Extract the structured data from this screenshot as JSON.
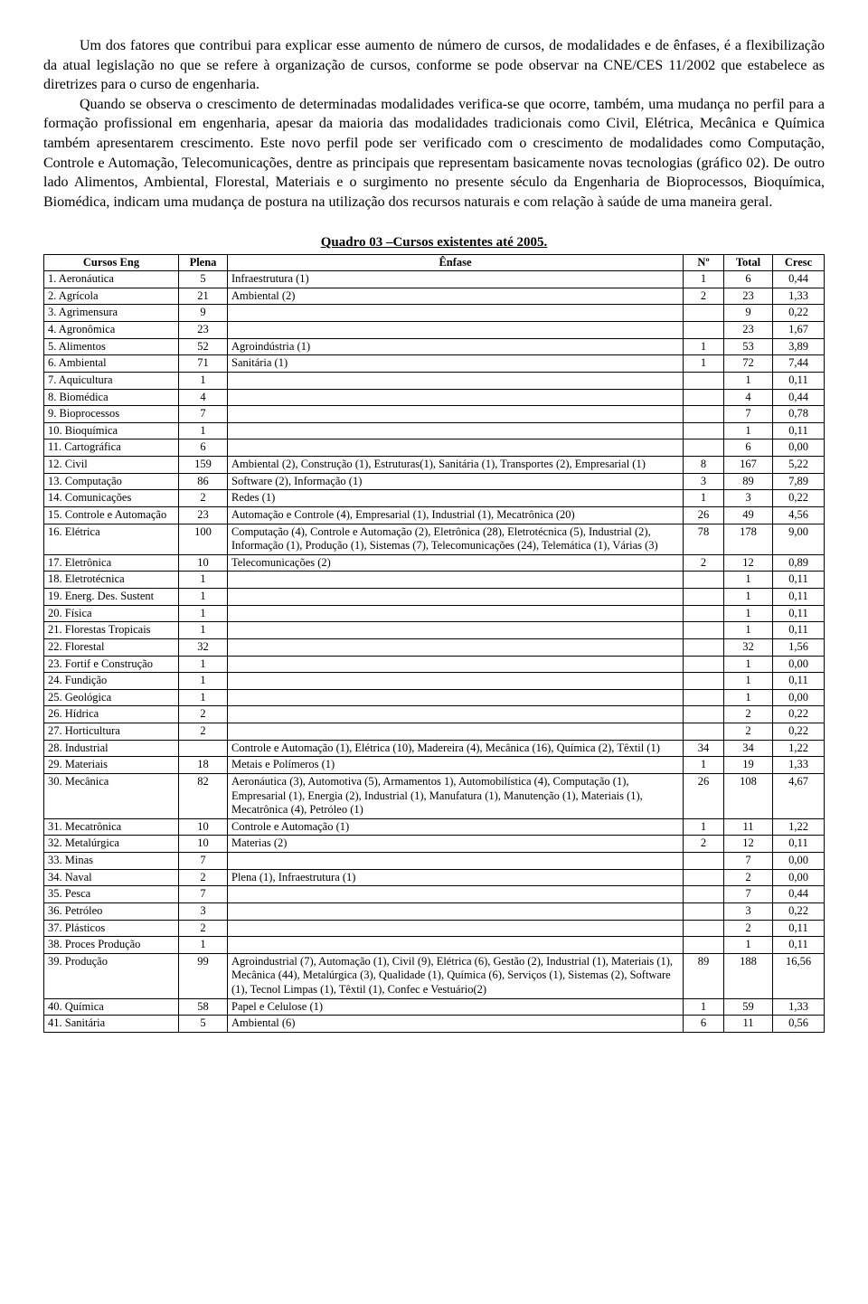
{
  "paragraphs": [
    "Um dos fatores que contribui para explicar esse aumento de número de cursos, de modalidades e de ênfases, é a flexibilização da atual legislação no que se refere à organização de cursos, conforme se pode observar na CNE/CES 11/2002 que estabelece as diretrizes para o curso de engenharia.",
    "Quando se observa o crescimento de determinadas modalidades verifica-se que ocorre, também, uma mudança no perfil para a formação profissional em engenharia, apesar da maioria das modalidades tradicionais como Civil, Elétrica, Mecânica e Química também apresentarem crescimento. Este novo perfil pode ser verificado com o crescimento de modalidades como Computação, Controle e Automação, Telecomunicações, dentre as principais que representam basicamente novas tecnologias (gráfico 02). De outro lado Alimentos, Ambiental, Florestal, Materiais e o surgimento no presente século da Engenharia de Bioprocessos, Bioquímica, Biomédica, indicam uma mudança de postura na utilização dos recursos naturais e com relação à saúde de uma maneira geral."
  ],
  "table_title": "Quadro 03 –Cursos existentes até 2005.",
  "columns": [
    "Cursos Eng",
    "Plena",
    "Ênfase",
    "Nº",
    "Total",
    "Cresc"
  ],
  "rows": [
    {
      "n": "1.",
      "name": "Aeronáutica",
      "plena": "5",
      "enfase": "Infraestrutura (1)",
      "no": "1",
      "total": "6",
      "cresc": "0,44"
    },
    {
      "n": "2.",
      "name": "Agrícola",
      "plena": "21",
      "enfase": "Ambiental (2)",
      "no": "2",
      "total": "23",
      "cresc": "1,33"
    },
    {
      "n": "3.",
      "name": "Agrimensura",
      "plena": "9",
      "enfase": "",
      "no": "",
      "total": "9",
      "cresc": "0,22"
    },
    {
      "n": "4.",
      "name": "Agronômica",
      "plena": "23",
      "enfase": "",
      "no": "",
      "total": "23",
      "cresc": "1,67"
    },
    {
      "n": "5.",
      "name": "Alimentos",
      "plena": "52",
      "enfase": "Agroindústria (1)",
      "no": "1",
      "total": "53",
      "cresc": "3,89"
    },
    {
      "n": "6.",
      "name": "Ambiental",
      "plena": "71",
      "enfase": "Sanitária (1)",
      "no": "1",
      "total": "72",
      "cresc": "7,44"
    },
    {
      "n": "7.",
      "name": "Aquicultura",
      "plena": "1",
      "enfase": "",
      "no": "",
      "total": "1",
      "cresc": "0,11"
    },
    {
      "n": "8.",
      "name": "Biomédica",
      "plena": "4",
      "enfase": "",
      "no": "",
      "total": "4",
      "cresc": "0,44"
    },
    {
      "n": "9.",
      "name": "Bioprocessos",
      "plena": "7",
      "enfase": "",
      "no": "",
      "total": "7",
      "cresc": "0,78"
    },
    {
      "n": "10.",
      "name": "Bioquímica",
      "plena": "1",
      "enfase": "",
      "no": "",
      "total": "1",
      "cresc": "0,11"
    },
    {
      "n": "11.",
      "name": "Cartográfica",
      "plena": "6",
      "enfase": "",
      "no": "",
      "total": "6",
      "cresc": "0,00"
    },
    {
      "n": "12.",
      "name": "Civil",
      "plena": "159",
      "enfase": "Ambiental (2), Construção (1), Estruturas(1), Sanitária (1), Transportes (2), Empresarial (1)",
      "no": "8",
      "total": "167",
      "cresc": "5,22"
    },
    {
      "n": "13.",
      "name": "Computação",
      "plena": "86",
      "enfase": "Software (2), Informação (1)",
      "no": "3",
      "total": "89",
      "cresc": "7,89"
    },
    {
      "n": "14.",
      "name": "Comunicações",
      "plena": "2",
      "enfase": "Redes (1)",
      "no": "1",
      "total": "3",
      "cresc": "0,22"
    },
    {
      "n": "15.",
      "name": "Controle e Automação",
      "plena": "23",
      "enfase": "Automação e Controle (4), Empresarial (1), Industrial (1), Mecatrônica (20)",
      "no": "26",
      "total": "49",
      "cresc": "4,56"
    },
    {
      "n": "16.",
      "name": "Elétrica",
      "plena": "100",
      "enfase": "Computação (4), Controle e Automação (2),  Eletrônica (28), Eletrotécnica (5), Industrial (2), Informação (1), Produção (1), Sistemas (7), Telecomunicações (24), Telemática (1), Várias (3)",
      "no": "78",
      "total": "178",
      "cresc": "9,00"
    },
    {
      "n": "17.",
      "name": "Eletrônica",
      "plena": "10",
      "enfase": "Telecomunicações (2)",
      "no": "2",
      "total": "12",
      "cresc": "0,89"
    },
    {
      "n": "18.",
      "name": "Eletrotécnica",
      "plena": "1",
      "enfase": "",
      "no": "",
      "total": "1",
      "cresc": "0,11"
    },
    {
      "n": "19.",
      "name": "Energ. Des. Sustent",
      "plena": "1",
      "enfase": "",
      "no": "",
      "total": "1",
      "cresc": "0,11"
    },
    {
      "n": "20.",
      "name": "Física",
      "plena": "1",
      "enfase": "",
      "no": "",
      "total": "1",
      "cresc": "0,11"
    },
    {
      "n": "21.",
      "name": "Florestas Tropicais",
      "plena": "1",
      "enfase": "",
      "no": "",
      "total": "1",
      "cresc": "0,11"
    },
    {
      "n": "22.",
      "name": "Florestal",
      "plena": "32",
      "enfase": "",
      "no": "",
      "total": "32",
      "cresc": "1,56"
    },
    {
      "n": "23.",
      "name": "Fortif e Construção",
      "plena": "1",
      "enfase": "",
      "no": "",
      "total": "1",
      "cresc": "0,00"
    },
    {
      "n": "24.",
      "name": "Fundição",
      "plena": "1",
      "enfase": "",
      "no": "",
      "total": "1",
      "cresc": "0,11"
    },
    {
      "n": "25.",
      "name": "Geológica",
      "plena": "1",
      "enfase": "",
      "no": "",
      "total": "1",
      "cresc": "0,00"
    },
    {
      "n": "26.",
      "name": "Hídrica",
      "plena": "2",
      "enfase": "",
      "no": "",
      "total": "2",
      "cresc": "0,22"
    },
    {
      "n": "27.",
      "name": "Horticultura",
      "plena": "2",
      "enfase": "",
      "no": "",
      "total": "2",
      "cresc": "0,22"
    },
    {
      "n": "28.",
      "name": "Industrial",
      "plena": "",
      "enfase": "Controle e Automação (1), Elétrica (10), Madereira (4), Mecânica (16), Química (2), Têxtil (1)",
      "no": "34",
      "total": "34",
      "cresc": "1,22"
    },
    {
      "n": "29.",
      "name": "Materiais",
      "plena": "18",
      "enfase": "Metais e Polímeros (1)",
      "no": "1",
      "total": "19",
      "cresc": "1,33"
    },
    {
      "n": "30.",
      "name": "Mecânica",
      "plena": "82",
      "enfase": "Aeronáutica (3), Automotiva (5), Armamentos 1), Automobilística (4), Computação (1), Empresarial (1), Energia (2), Industrial (1), Manufatura (1), Manutenção (1), Materiais (1), Mecatrônica (4), Petróleo (1)",
      "no": "26",
      "total": "108",
      "cresc": "4,67"
    },
    {
      "n": "31.",
      "name": "Mecatrônica",
      "plena": "10",
      "enfase": "Controle e Automação (1)",
      "no": "1",
      "total": "11",
      "cresc": "1,22"
    },
    {
      "n": "32.",
      "name": "Metalúrgica",
      "plena": "10",
      "enfase": "Materias (2)",
      "no": "2",
      "total": "12",
      "cresc": "0,11"
    },
    {
      "n": "33.",
      "name": "Minas",
      "plena": "7",
      "enfase": "",
      "no": "",
      "total": "7",
      "cresc": "0,00"
    },
    {
      "n": "34.",
      "name": "Naval",
      "plena": "2",
      "enfase": "Plena (1), Infraestrutura (1)",
      "no": "",
      "total": "2",
      "cresc": "0,00"
    },
    {
      "n": "35.",
      "name": "Pesca",
      "plena": "7",
      "enfase": "",
      "no": "",
      "total": "7",
      "cresc": "0,44"
    },
    {
      "n": "36.",
      "name": "Petróleo",
      "plena": "3",
      "enfase": "",
      "no": "",
      "total": "3",
      "cresc": "0,22"
    },
    {
      "n": "37.",
      "name": "Plásticos",
      "plena": "2",
      "enfase": "",
      "no": "",
      "total": "2",
      "cresc": "0,11"
    },
    {
      "n": "38.",
      "name": "Proces Produção",
      "plena": "1",
      "enfase": "",
      "no": "",
      "total": "1",
      "cresc": "0,11"
    },
    {
      "n": "39.",
      "name": "Produção",
      "plena": "99",
      "enfase": "Agroindustrial (7), Automação (1), Civil (9), Elétrica (6), Gestão (2), Industrial (1), Materiais (1), Mecânica (44), Metalúrgica (3), Qualidade (1), Química (6), Serviços (1), Sistemas (2), Software (1), Tecnol Limpas (1), Têxtil (1), Confec e Vestuário(2)",
      "no": "89",
      "total": "188",
      "cresc": "16,56"
    },
    {
      "n": "40.",
      "name": "Química",
      "plena": "58",
      "enfase": "Papel e Celulose  (1)",
      "no": "1",
      "total": "59",
      "cresc": "1,33"
    },
    {
      "n": "41.",
      "name": "Sanitária",
      "plena": "5",
      "enfase": "Ambiental (6)",
      "no": "6",
      "total": "11",
      "cresc": "0,56"
    }
  ]
}
